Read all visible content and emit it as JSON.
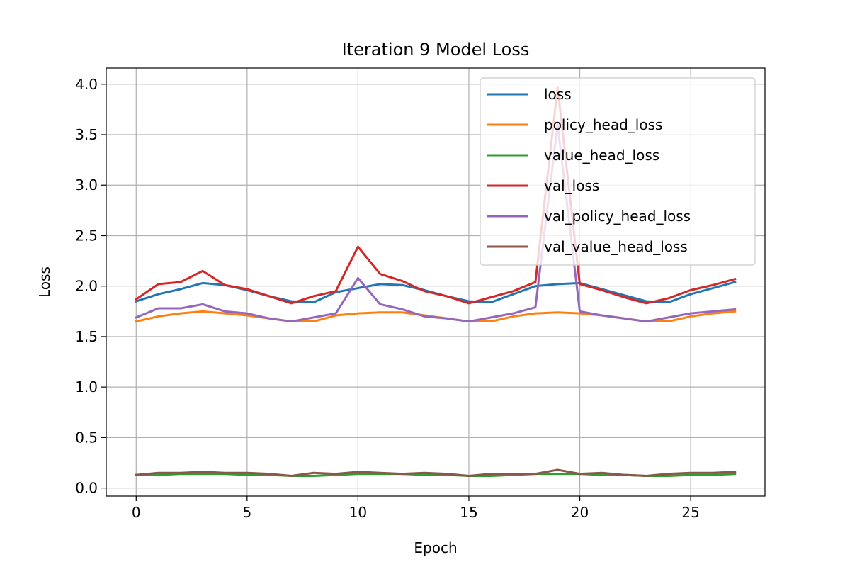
{
  "chart_data": {
    "type": "line",
    "title": "Iteration 9 Model Loss",
    "xlabel": "Epoch",
    "ylabel": "Loss",
    "xlim": [
      -1.35,
      28.35
    ],
    "ylim": [
      -0.08,
      4.16
    ],
    "x_ticks": [
      0,
      5,
      10,
      15,
      20,
      25
    ],
    "x_tick_labels": [
      "0",
      "5",
      "10",
      "15",
      "20",
      "25"
    ],
    "y_ticks": [
      0.0,
      0.5,
      1.0,
      1.5,
      2.0,
      2.5,
      3.0,
      3.5,
      4.0
    ],
    "y_tick_labels": [
      "0.0",
      "0.5",
      "1.0",
      "1.5",
      "2.0",
      "2.5",
      "3.0",
      "3.5",
      "4.0"
    ],
    "grid": true,
    "legend_position": "upper right",
    "x": [
      0,
      1,
      2,
      3,
      4,
      5,
      6,
      7,
      8,
      9,
      10,
      11,
      12,
      13,
      14,
      15,
      16,
      17,
      18,
      19,
      20,
      21,
      22,
      23,
      24,
      25,
      26,
      27
    ],
    "series": [
      {
        "name": "loss",
        "color": "#1f77b4",
        "values": [
          1.85,
          1.92,
          1.97,
          2.03,
          2.01,
          1.96,
          1.9,
          1.85,
          1.84,
          1.94,
          1.98,
          2.02,
          2.01,
          1.96,
          1.9,
          1.85,
          1.84,
          1.92,
          2.0,
          2.02,
          2.03,
          1.97,
          1.91,
          1.85,
          1.84,
          1.92,
          1.98,
          2.04
        ]
      },
      {
        "name": "policy_head_loss",
        "color": "#ff7f0e",
        "values": [
          1.65,
          1.7,
          1.73,
          1.75,
          1.73,
          1.71,
          1.68,
          1.65,
          1.65,
          1.71,
          1.73,
          1.74,
          1.74,
          1.71,
          1.68,
          1.65,
          1.65,
          1.7,
          1.73,
          1.74,
          1.73,
          1.71,
          1.68,
          1.65,
          1.65,
          1.7,
          1.73,
          1.75
        ]
      },
      {
        "name": "value_head_loss",
        "color": "#2ca02c",
        "values": [
          0.13,
          0.13,
          0.14,
          0.14,
          0.14,
          0.13,
          0.13,
          0.12,
          0.12,
          0.13,
          0.14,
          0.14,
          0.14,
          0.13,
          0.13,
          0.12,
          0.12,
          0.13,
          0.14,
          0.14,
          0.14,
          0.13,
          0.13,
          0.12,
          0.12,
          0.13,
          0.13,
          0.14
        ]
      },
      {
        "name": "val_loss",
        "color": "#d62728",
        "values": [
          1.87,
          2.02,
          2.04,
          2.15,
          2.01,
          1.97,
          1.9,
          1.83,
          1.9,
          1.95,
          2.39,
          2.12,
          2.05,
          1.95,
          1.9,
          1.83,
          1.89,
          1.95,
          2.04,
          3.97,
          2.02,
          1.96,
          1.89,
          1.83,
          1.88,
          1.96,
          2.01,
          2.07
        ]
      },
      {
        "name": "val_policy_head_loss",
        "color": "#9467bd",
        "values": [
          1.69,
          1.78,
          1.78,
          1.82,
          1.75,
          1.73,
          1.68,
          1.65,
          1.69,
          1.73,
          2.08,
          1.82,
          1.77,
          1.7,
          1.68,
          1.65,
          1.69,
          1.73,
          1.79,
          3.6,
          1.75,
          1.71,
          1.68,
          1.65,
          1.69,
          1.73,
          1.75,
          1.77
        ]
      },
      {
        "name": "val_value_head_loss",
        "color": "#8c564b",
        "values": [
          0.13,
          0.15,
          0.15,
          0.16,
          0.15,
          0.15,
          0.14,
          0.12,
          0.15,
          0.14,
          0.16,
          0.15,
          0.14,
          0.15,
          0.14,
          0.12,
          0.14,
          0.14,
          0.14,
          0.18,
          0.14,
          0.15,
          0.13,
          0.12,
          0.14,
          0.15,
          0.15,
          0.16
        ]
      }
    ]
  }
}
